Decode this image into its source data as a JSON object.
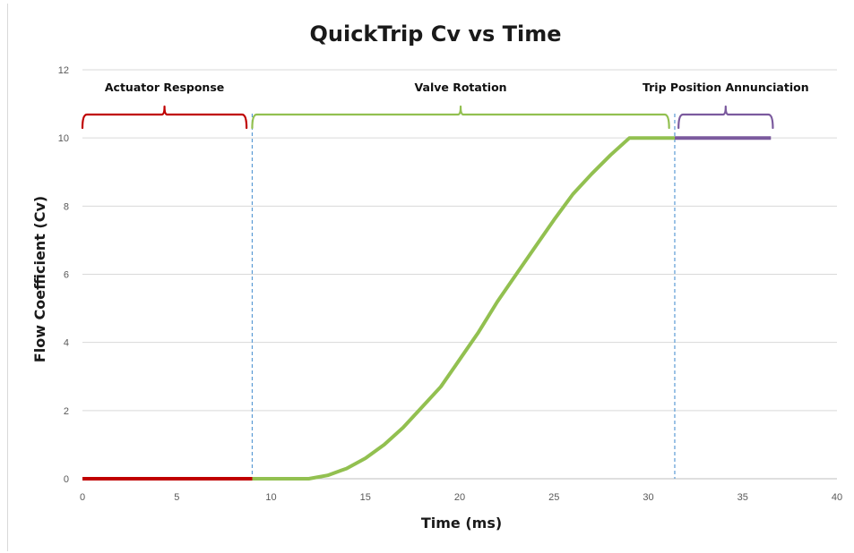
{
  "chart_data": {
    "type": "line",
    "title": "QuickTrip Cv vs Time",
    "xlabel": "Time (ms)",
    "ylabel": "Flow Coefficient (Cv)",
    "xlim": [
      0,
      40
    ],
    "ylim": [
      0,
      12
    ],
    "xticks": [
      0,
      5,
      10,
      15,
      20,
      25,
      30,
      35,
      40
    ],
    "yticks": [
      0,
      2,
      4,
      6,
      8,
      10,
      12
    ],
    "grid": "horizontal",
    "legend": "none",
    "series": [
      {
        "color": "#c00000",
        "points": [
          [
            0,
            0
          ],
          [
            9,
            0
          ]
        ]
      },
      {
        "color": "#92c050",
        "points": [
          [
            9,
            0
          ],
          [
            12,
            0
          ],
          [
            13,
            0.1
          ],
          [
            14,
            0.3
          ],
          [
            15,
            0.6
          ],
          [
            16,
            1.0
          ],
          [
            17,
            1.5
          ],
          [
            18,
            2.1
          ],
          [
            19,
            2.7
          ],
          [
            20,
            3.5
          ],
          [
            21,
            4.3
          ],
          [
            22,
            5.2
          ],
          [
            23,
            6.0
          ],
          [
            24,
            6.8
          ],
          [
            25,
            7.6
          ],
          [
            26,
            8.35
          ],
          [
            27,
            8.95
          ],
          [
            28,
            9.5
          ],
          [
            29,
            10.0
          ],
          [
            31.4,
            10.0
          ]
        ]
      },
      {
        "color": "#7b5a9e",
        "points": [
          [
            31.4,
            10.0
          ],
          [
            36.5,
            10.0
          ]
        ]
      }
    ],
    "markers": [
      {
        "x": 9.0,
        "color": "#5b9bd5",
        "style": "dashed"
      },
      {
        "x": 31.4,
        "color": "#5b9bd5",
        "style": "dashed"
      }
    ],
    "phases": [
      {
        "label": "Actuator Response",
        "x0": 0,
        "x1": 8.7,
        "color": "#c00000"
      },
      {
        "label": "Valve Rotation",
        "x0": 9.0,
        "x1": 31.1,
        "color": "#92c050"
      },
      {
        "label": "Trip Position Annunciation",
        "x0": 31.6,
        "x1": 36.6,
        "color": "#7b5a9e"
      }
    ]
  }
}
